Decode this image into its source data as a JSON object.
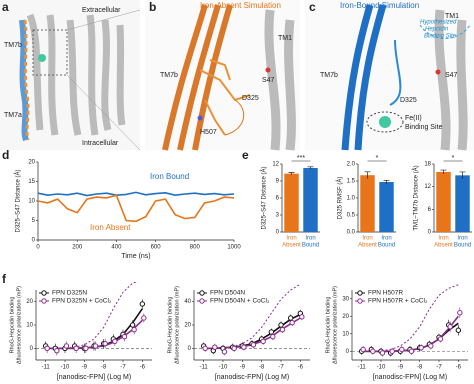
{
  "panel_labels": [
    "a",
    "b",
    "c",
    "d",
    "e",
    "f"
  ],
  "a": {
    "extracellular": "Extracellular",
    "intracellular": "Intracellular",
    "tm7b": "TM7b",
    "tm7a": "TM7a"
  },
  "b": {
    "title": "Iron-Absent Simulation",
    "tm1": "TM1",
    "tm7b": "TM7b",
    "s47": "S47",
    "d325": "D325",
    "h507": "H507"
  },
  "c": {
    "title": "Iron-Bound Simulation",
    "tm1": "TM1",
    "hepcidin": [
      "Hypothesized",
      "Hepcidin",
      "Binding Site"
    ],
    "tm7b": "TM7b",
    "s47": "S47",
    "d325": "D325",
    "fe": [
      "Fe(II)",
      "Binding Site"
    ]
  },
  "chart_data": [
    {
      "type": "line",
      "xlabel": "Time (ns)",
      "ylabel": "D325–S47 Distance (Å)",
      "x": [
        0,
        50,
        100,
        150,
        200,
        250,
        300,
        350,
        400,
        450,
        500,
        550,
        600,
        650,
        700,
        750,
        800,
        850,
        900,
        950,
        1000
      ],
      "xlim": [
        0,
        1000
      ],
      "xticks": [
        0,
        200,
        400,
        600,
        800,
        1000
      ],
      "ylim": [
        0,
        20
      ],
      "yticks": [
        0,
        5,
        10,
        15,
        20
      ],
      "series": [
        {
          "name": "Iron Bound",
          "color": "#1f6fc4",
          "values": [
            12,
            11.5,
            11.8,
            11.6,
            12,
            11.4,
            11.8,
            12,
            11.5,
            11.7,
            12.2,
            11.6,
            11.9,
            12.1,
            11.5,
            11.8,
            12,
            11.7,
            11.9,
            11.6,
            11.8
          ]
        },
        {
          "name": "Iron Absent",
          "color": "#e8751a",
          "values": [
            10,
            9.5,
            10.5,
            8,
            7,
            10.5,
            11,
            10.8,
            11.5,
            5,
            4.8,
            6,
            10,
            10.5,
            6.5,
            5.5,
            5.8,
            9.5,
            10,
            11,
            10.8
          ]
        }
      ]
    },
    {
      "type": "bar",
      "ylabel": "D325–S47 Distance (Å)",
      "categories": [
        [
          "Iron",
          "Absent"
        ],
        [
          "Iron",
          "Bound"
        ]
      ],
      "colors": [
        "#e8751a",
        "#1f6fc4"
      ],
      "values": [
        10.3,
        11.3
      ],
      "errors": [
        0.2,
        0.2
      ],
      "ylim": [
        0,
        12
      ],
      "yticks": [
        0,
        3,
        6,
        9,
        12
      ],
      "significance": "***"
    },
    {
      "type": "bar",
      "ylabel": "D325 RMSF (Å)",
      "categories": [
        [
          "Iron",
          "Absent"
        ],
        [
          "Iron",
          "Bound"
        ]
      ],
      "colors": [
        "#e8751a",
        "#1f6fc4"
      ],
      "values": [
        1.67,
        1.47
      ],
      "errors": [
        0.1,
        0.05
      ],
      "ylim": [
        0,
        2
      ],
      "yticks": [
        {
          "value": 0,
          "label": "0.0"
        },
        {
          "value": 0.5,
          "label": "0.5"
        },
        {
          "value": 1,
          "label": "1.0"
        },
        {
          "value": 1.5,
          "label": "1.5"
        },
        {
          "value": 2,
          "label": "2.0"
        }
      ],
      "significance": "*"
    },
    {
      "type": "bar",
      "ylabel": "TM1–TM7b Distance (Å)",
      "categories": [
        [
          "Iron",
          "Absent"
        ],
        [
          "Iron",
          "Bound"
        ]
      ],
      "colors": [
        "#e8751a",
        "#1f6fc4"
      ],
      "values": [
        15.9,
        15.0
      ],
      "errors": [
        0.5,
        0.9
      ],
      "ylim": [
        0,
        18
      ],
      "yticks": [
        0,
        6,
        12,
        18
      ],
      "significance": "*"
    },
    {
      "type": "scatter",
      "xlabel": "[nanodisc-FPN] (Log M)",
      "ylabel": [
        "RhoG-Hepcidin binding",
        "Δfluorescence polarization (mP)"
      ],
      "x": [
        -11,
        -10.5,
        -10,
        -9.5,
        -9,
        -8.5,
        -8,
        -7.5,
        -7,
        -6.5,
        -6
      ],
      "xlim": [
        -11.5,
        -5.5
      ],
      "xticks": [
        -11,
        -10,
        -9,
        -8,
        -7,
        -6
      ],
      "ylim": [
        -5,
        25
      ],
      "yticks": [
        0,
        10,
        20
      ],
      "series": [
        {
          "name": "FPN D325N",
          "color": "#111111",
          "values": [
            1,
            0,
            0,
            1,
            0,
            1,
            2,
            4,
            6,
            10,
            19
          ],
          "errors": [
            2,
            2,
            2,
            2,
            2,
            2,
            2,
            2,
            2,
            2,
            2
          ]
        },
        {
          "name": "FPN D325N + CoCl₂",
          "color": "#8e2a8e",
          "values": [
            0,
            -1,
            1,
            0,
            0,
            1,
            2,
            3,
            5,
            8,
            13
          ],
          "errors": [
            2,
            2,
            2,
            2,
            2,
            2,
            2,
            2,
            2,
            2,
            2
          ]
        }
      ],
      "curves": [
        {
          "color": "#111111",
          "style": "solid",
          "values": [
            0,
            0,
            0,
            0,
            0.2,
            0.5,
            1.2,
            3,
            6,
            11,
            17
          ]
        },
        {
          "color": "#8e2a8e",
          "style": "solid",
          "values": [
            0,
            0,
            0,
            0,
            0.2,
            0.5,
            1,
            2.5,
            5,
            8,
            12
          ]
        },
        {
          "color": "#8e2a8e",
          "style": "dashed",
          "values": [
            0,
            0,
            0,
            0.5,
            1.5,
            4,
            9,
            17,
            24,
            28,
            29
          ]
        }
      ]
    },
    {
      "type": "scatter",
      "xlabel": "[nanodisc-FPN] (Log M)",
      "ylabel": [
        "RhoG-Hepcidin binding",
        "Δfluorescence polarization (mP)"
      ],
      "x": [
        -11,
        -10.5,
        -10,
        -9.5,
        -9,
        -8.5,
        -8,
        -7.5,
        -7,
        -6.5,
        -6
      ],
      "xlim": [
        -11.5,
        -5.5
      ],
      "xticks": [
        -11,
        -10,
        -9,
        -8,
        -7,
        -6
      ],
      "ylim": [
        -10,
        50
      ],
      "yticks": [
        0,
        20,
        40
      ],
      "series": [
        {
          "name": "FPN D504N",
          "color": "#111111",
          "values": [
            2,
            -2,
            0,
            1,
            2,
            4,
            8,
            14,
            20,
            26,
            30
          ],
          "errors": [
            3,
            3,
            3,
            3,
            3,
            3,
            3,
            3,
            3,
            3,
            3
          ]
        },
        {
          "name": "FPN D504N + CoCl₂",
          "color": "#8e2a8e",
          "values": [
            0,
            1,
            -3,
            0,
            1,
            3,
            6,
            10,
            16,
            22,
            27
          ],
          "errors": [
            3,
            3,
            3,
            3,
            3,
            3,
            3,
            3,
            3,
            3,
            3
          ]
        }
      ],
      "curves": [
        {
          "color": "#111111",
          "style": "solid",
          "values": [
            0,
            0,
            0.5,
            1,
            2,
            4,
            8,
            13,
            19,
            25,
            29
          ]
        },
        {
          "color": "#8e2a8e",
          "style": "solid",
          "values": [
            0,
            0,
            0.3,
            0.8,
            1.5,
            3,
            6,
            10,
            16,
            21,
            26
          ]
        },
        {
          "color": "#8e2a8e",
          "style": "dashed",
          "values": [
            0,
            0,
            0.5,
            1.5,
            4,
            9,
            18,
            30,
            42,
            50,
            55
          ]
        }
      ]
    },
    {
      "type": "scatter",
      "xlabel": "[nanodisc-FPN] (Log M)",
      "ylabel": [
        "RhoG-Hepcidin binding",
        "Δfluorescence polarization (mP)"
      ],
      "x": [
        -11,
        -10.5,
        -10,
        -9.5,
        -9,
        -8.5,
        -8,
        -7.5,
        -7,
        -6.5,
        -6
      ],
      "xlim": [
        -11.5,
        -5.5
      ],
      "xticks": [
        -11,
        -10,
        -9,
        -8,
        -7,
        -6
      ],
      "ylim": [
        -5,
        35
      ],
      "yticks": [
        0,
        10,
        20,
        30
      ],
      "series": [
        {
          "name": "FPN H507R",
          "color": "#111111",
          "values": [
            0,
            1,
            0,
            -1,
            0,
            1,
            2,
            4,
            8,
            15,
            12
          ],
          "errors": [
            2,
            2,
            2,
            2,
            2,
            2,
            2,
            2,
            2,
            3,
            3
          ]
        },
        {
          "name": "FPN H507R + CoCl₂",
          "color": "#8e2a8e",
          "values": [
            1,
            0,
            -1,
            0,
            1,
            0,
            2,
            3,
            7,
            14,
            22
          ],
          "errors": [
            2,
            2,
            2,
            2,
            2,
            2,
            2,
            2,
            2,
            3,
            3
          ]
        }
      ],
      "curves": [
        {
          "color": "#111111",
          "style": "solid",
          "values": [
            0,
            0,
            0,
            0,
            0.2,
            0.6,
            1.5,
            3.5,
            7,
            12,
            16
          ]
        },
        {
          "color": "#8e2a8e",
          "style": "solid",
          "values": [
            0,
            0,
            0,
            0,
            0.2,
            0.6,
            1.5,
            3.5,
            7,
            13,
            20
          ]
        },
        {
          "color": "#8e2a8e",
          "style": "dashed",
          "values": [
            0,
            0,
            0.3,
            1,
            3,
            7,
            14,
            24,
            32,
            36,
            38
          ]
        }
      ]
    }
  ]
}
